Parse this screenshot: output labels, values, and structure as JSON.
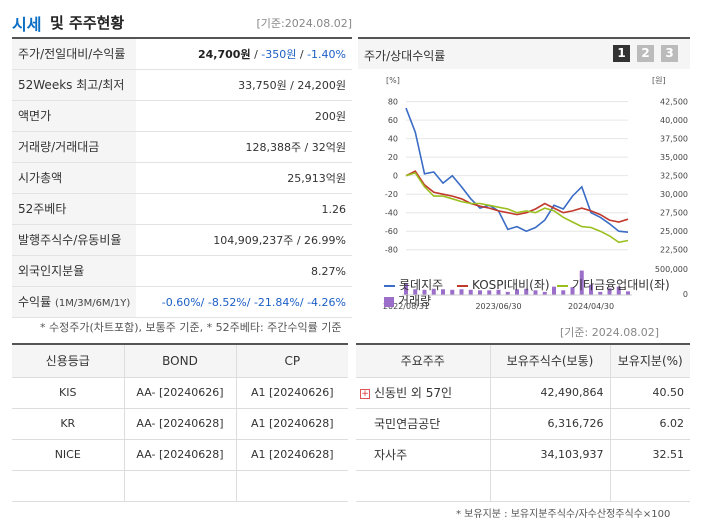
{
  "header": {
    "title_main": "시세",
    "title_rest": "및 주주현황",
    "date": "[기준:2024.08.02]"
  },
  "price_table": [
    {
      "label": "주가/전일대비/수익률",
      "v1": "24,700원",
      "sep1": " / ",
      "v2": "-350원",
      "sep2": " / ",
      "v3": "-1.40%"
    },
    {
      "label": "52Weeks 최고/최저",
      "value": "33,750원 / 24,200원"
    },
    {
      "label": "액면가",
      "value": "200원"
    },
    {
      "label": "거래량/거래대금",
      "value": "128,388주 / 32억원"
    },
    {
      "label": "시가총액",
      "value": "25,913억원"
    },
    {
      "label": "52주베타",
      "value": "1.26"
    },
    {
      "label": "발행주식수/유동비율",
      "value": "104,909,237주 / 26.99%"
    },
    {
      "label": "외국인지분율",
      "value": "8.27%"
    },
    {
      "label": "수익률",
      "label_small": "(1M/3M/6M/1Y)",
      "value": "-0.60%/ -8.52%/ -21.84%/ -4.26%"
    }
  ],
  "note1": "* 수정주가(차트포함), 보통주 기준, * 52주베타: 주간수익률 기준",
  "chart": {
    "title": "주가/상대수익률",
    "buttons": [
      "1",
      "2",
      "3"
    ],
    "left_unit": "[%]",
    "right_unit": "[원]",
    "left_ticks": [
      "80",
      "60",
      "40",
      "20",
      "0",
      "-20",
      "-40",
      "-60",
      "-80"
    ],
    "right_ticks": [
      "42,500",
      "40,000",
      "37,500",
      "35,000",
      "32,500",
      "30,000",
      "27,500",
      "25,000",
      "22,500"
    ],
    "vol_ticks": [
      "500,000",
      "0"
    ],
    "x_labels": [
      "2022/08/31",
      "2023/06/30",
      "2024/04/30"
    ],
    "legend": [
      "롯데지주",
      "KOSPI대비(좌)",
      "기타금융업대비(좌)",
      "거래량"
    ],
    "colors": {
      "main": "#3b6cc6",
      "kospi": "#c0392b",
      "industry": "#9abf1e",
      "volume": "#9b6fc9"
    }
  },
  "chart_data": {
    "type": "line",
    "x": [
      "2022/08",
      "2022/09",
      "2022/10",
      "2022/11",
      "2022/12",
      "2023/01",
      "2023/02",
      "2023/03",
      "2023/04",
      "2023/05",
      "2023/06",
      "2023/07",
      "2023/08",
      "2023/09",
      "2023/10",
      "2023/11",
      "2023/12",
      "2024/01",
      "2024/02",
      "2024/03",
      "2024/04",
      "2024/05",
      "2024/06",
      "2024/07",
      "2024/08"
    ],
    "series": [
      {
        "name": "롯데지주",
        "axis": "left",
        "values": [
          73,
          47,
          2,
          4,
          -8,
          0,
          -12,
          -25,
          -35,
          -32,
          -38,
          -58,
          -55,
          -60,
          -56,
          -48,
          -32,
          -36,
          -22,
          -12,
          -40,
          -45,
          -52,
          -60,
          -61
        ]
      },
      {
        "name": "KOSPI대비(좌)",
        "axis": "left",
        "values": [
          0,
          5,
          -10,
          -18,
          -20,
          -22,
          -25,
          -30,
          -33,
          -35,
          -38,
          -40,
          -42,
          -40,
          -36,
          -30,
          -35,
          -40,
          -38,
          -35,
          -38,
          -42,
          -48,
          -50,
          -47
        ]
      },
      {
        "name": "기타금융업대비(좌)",
        "axis": "left",
        "values": [
          0,
          3,
          -12,
          -22,
          -22,
          -25,
          -28,
          -30,
          -30,
          -32,
          -34,
          -36,
          -40,
          -38,
          -40,
          -35,
          -38,
          -45,
          -50,
          -55,
          -56,
          -60,
          -65,
          -72,
          -70
        ]
      },
      {
        "name": "거래량",
        "axis": "volume",
        "values": [
          220000,
          110000,
          100000,
          120000,
          110000,
          100000,
          110000,
          100000,
          90000,
          90000,
          100000,
          60000,
          110000,
          120000,
          90000,
          60000,
          160000,
          90000,
          150000,
          470000,
          200000,
          60000,
          130000,
          160000,
          70000
        ]
      }
    ],
    "ylim": [
      -90,
      85
    ],
    "ylim_right": [
      22500,
      42500
    ],
    "vol_ylim": [
      0,
      500000
    ]
  },
  "date2": "[기준: 2024.08.02]",
  "credit": {
    "headers": [
      "신용등급",
      "BOND",
      "CP"
    ],
    "rows": [
      [
        "KIS",
        "AA-  [20240626]",
        "A1  [20240626]"
      ],
      [
        "KR",
        "AA-  [20240628]",
        "A1  [20240628]"
      ],
      [
        "NICE",
        "AA-  [20240628]",
        "A1  [20240628]"
      ],
      [
        "",
        "",
        ""
      ]
    ]
  },
  "holders": {
    "headers": [
      "주요주주",
      "보유주식수(보통)",
      "보유지분(%)"
    ],
    "rows": [
      [
        "신동빈 외 57인",
        "42,490,864",
        "40.50"
      ],
      [
        "국민연금공단",
        "6,316,726",
        "6.02"
      ],
      [
        "자사주",
        "34,103,937",
        "32.51"
      ],
      [
        "",
        "",
        ""
      ]
    ]
  },
  "note2": "* 보유지분 : 보유지분주식수/자수산정주식수×100"
}
